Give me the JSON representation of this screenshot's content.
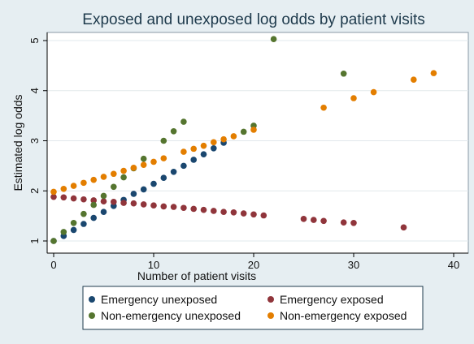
{
  "chart_data": {
    "type": "scatter",
    "title": "Exposed and unexposed log odds by patient visits",
    "xlabel": "Number of patient visits",
    "ylabel": "Estimated log odds",
    "xlim": [
      0,
      40
    ],
    "ylim": [
      1,
      5
    ],
    "xticks": [
      0,
      10,
      20,
      30,
      40
    ],
    "yticks": [
      1,
      2,
      3,
      4,
      5
    ],
    "grid": "horizontal",
    "legend_position": "bottom",
    "legend_columns": 2,
    "series": [
      {
        "name": "Emergency unexposed",
        "color": "#1a476f",
        "points": [
          [
            0,
            1.0
          ],
          [
            1,
            1.1
          ],
          [
            2,
            1.22
          ],
          [
            3,
            1.34
          ],
          [
            4,
            1.46
          ],
          [
            5,
            1.58
          ],
          [
            6,
            1.7
          ],
          [
            7,
            1.82
          ],
          [
            8,
            1.94
          ],
          [
            9,
            2.03
          ],
          [
            10,
            2.14
          ],
          [
            11,
            2.26
          ],
          [
            12,
            2.38
          ],
          [
            13,
            2.5
          ],
          [
            14,
            2.62
          ],
          [
            15,
            2.73
          ],
          [
            16,
            2.85
          ],
          [
            17,
            2.96
          ]
        ]
      },
      {
        "name": "Emergency exposed",
        "color": "#90353b",
        "points": [
          [
            0,
            1.88
          ],
          [
            1,
            1.87
          ],
          [
            2,
            1.85
          ],
          [
            3,
            1.83
          ],
          [
            4,
            1.81
          ],
          [
            5,
            1.79
          ],
          [
            6,
            1.78
          ],
          [
            7,
            1.76
          ],
          [
            8,
            1.75
          ],
          [
            9,
            1.73
          ],
          [
            10,
            1.71
          ],
          [
            11,
            1.69
          ],
          [
            12,
            1.68
          ],
          [
            13,
            1.66
          ],
          [
            14,
            1.64
          ],
          [
            15,
            1.62
          ],
          [
            16,
            1.6
          ],
          [
            17,
            1.58
          ],
          [
            18,
            1.57
          ],
          [
            19,
            1.55
          ],
          [
            20,
            1.53
          ],
          [
            21,
            1.51
          ],
          [
            25,
            1.44
          ],
          [
            26,
            1.42
          ],
          [
            27,
            1.4
          ],
          [
            29,
            1.37
          ],
          [
            30,
            1.36
          ],
          [
            35,
            1.27
          ]
        ]
      },
      {
        "name": "Non-emergency unexposed",
        "color": "#55752f",
        "points": [
          [
            0,
            1.0
          ],
          [
            1,
            1.18
          ],
          [
            2,
            1.36
          ],
          [
            3,
            1.54
          ],
          [
            4,
            1.72
          ],
          [
            5,
            1.9
          ],
          [
            6,
            2.08
          ],
          [
            7,
            2.27
          ],
          [
            8,
            2.45
          ],
          [
            9,
            2.64
          ],
          [
            11,
            3.0
          ],
          [
            12,
            3.19
          ],
          [
            13,
            3.38
          ],
          [
            19,
            3.18
          ],
          [
            20,
            3.3
          ],
          [
            22,
            5.03
          ],
          [
            29,
            4.34
          ]
        ]
      },
      {
        "name": "Non-emergency exposed",
        "color": "#e37e00",
        "points": [
          [
            0,
            1.98
          ],
          [
            1,
            2.04
          ],
          [
            2,
            2.1
          ],
          [
            3,
            2.16
          ],
          [
            4,
            2.22
          ],
          [
            5,
            2.28
          ],
          [
            6,
            2.34
          ],
          [
            7,
            2.4
          ],
          [
            8,
            2.46
          ],
          [
            9,
            2.52
          ],
          [
            10,
            2.58
          ],
          [
            11,
            2.65
          ],
          [
            13,
            2.78
          ],
          [
            14,
            2.84
          ],
          [
            15,
            2.9
          ],
          [
            16,
            2.97
          ],
          [
            17,
            3.03
          ],
          [
            18,
            3.09
          ],
          [
            20,
            3.22
          ],
          [
            27,
            3.66
          ],
          [
            30,
            3.85
          ],
          [
            32,
            3.97
          ],
          [
            36,
            4.22
          ],
          [
            38,
            4.35
          ]
        ]
      }
    ]
  }
}
